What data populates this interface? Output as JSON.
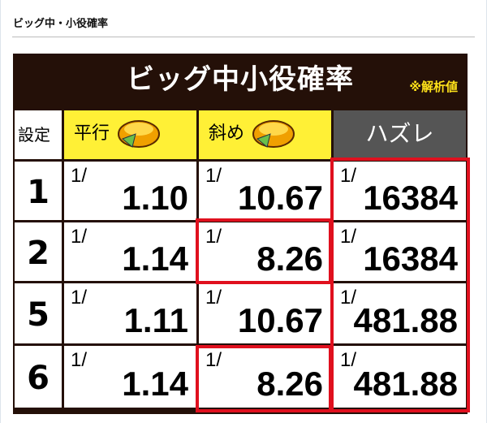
{
  "heading": "ビッグ中・小役確率",
  "table": {
    "title": "ビッグ中小役確率",
    "note": "※解析値",
    "headers": {
      "setting": "設定",
      "parallel": "平行",
      "diagonal": "斜め",
      "miss": "ハズレ"
    },
    "fraction_prefix": "1/",
    "rows": [
      {
        "setting": "1",
        "parallel": "1.10",
        "diagonal": "10.67",
        "miss": "16384"
      },
      {
        "setting": "2",
        "parallel": "1.14",
        "diagonal": "8.26",
        "miss": "16384"
      },
      {
        "setting": "5",
        "parallel": "1.11",
        "diagonal": "10.67",
        "miss": "481.88"
      },
      {
        "setting": "6",
        "parallel": "1.14",
        "diagonal": "8.26",
        "miss": "481.88"
      }
    ]
  },
  "colors": {
    "highlight": "#e0101e",
    "header_yellow": "#fff036",
    "title_bg": "#241008"
  }
}
